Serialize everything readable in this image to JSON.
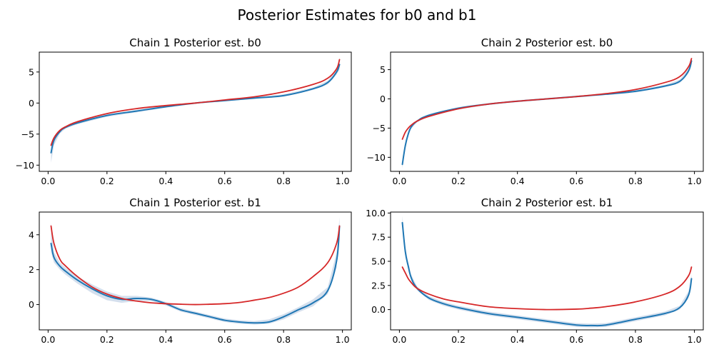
{
  "figure_title": "Posterior Estimates for b0 and b1",
  "colors": {
    "estimate": "#1f77b4",
    "band": "#b0c4de",
    "reference": "#d62728"
  },
  "chart_data": [
    {
      "type": "line",
      "title": "Chain 1 Posterior est. b0",
      "xlim": [
        -0.03,
        1.03
      ],
      "ylim": [
        -11.0,
        8.2
      ],
      "xticks": [
        0,
        0.2,
        0.4,
        0.6,
        0.8,
        1.0
      ],
      "xtick_labels": [
        "0.0",
        "0.2",
        "0.4",
        "0.6",
        "0.8",
        "1.0"
      ],
      "yticks": [
        -10,
        -5,
        0,
        5
      ],
      "ytick_labels": [
        "−10",
        "−5",
        "0",
        "5"
      ],
      "x": [
        0.01,
        0.02,
        0.04,
        0.06,
        0.1,
        0.2,
        0.3,
        0.4,
        0.5,
        0.6,
        0.7,
        0.8,
        0.9,
        0.95,
        0.98,
        0.99
      ],
      "series": [
        {
          "name": "estimate",
          "values": [
            -8.0,
            -6.0,
            -4.6,
            -3.9,
            -3.2,
            -2.0,
            -1.3,
            -0.6,
            0.0,
            0.4,
            0.8,
            1.2,
            2.3,
            3.3,
            5.0,
            6.2
          ]
        },
        {
          "name": "estimate_upper",
          "values": [
            -6.5,
            -5.4,
            -4.3,
            -3.7,
            -3.0,
            -1.8,
            -1.1,
            -0.45,
            0.1,
            0.5,
            0.95,
            1.4,
            2.5,
            3.6,
            5.5,
            7.2
          ]
        },
        {
          "name": "estimate_lower",
          "values": [
            -9.6,
            -6.8,
            -4.9,
            -4.1,
            -3.4,
            -2.2,
            -1.5,
            -0.75,
            -0.1,
            0.3,
            0.65,
            1.0,
            2.1,
            3.0,
            4.6,
            5.4
          ]
        },
        {
          "name": "reference",
          "values": [
            -6.8,
            -5.6,
            -4.4,
            -3.8,
            -3.0,
            -1.7,
            -0.9,
            -0.4,
            0.0,
            0.5,
            1.0,
            1.8,
            3.0,
            4.0,
            5.5,
            7.0
          ]
        }
      ]
    },
    {
      "type": "line",
      "title": "Chain 2 Posterior est. b0",
      "xlim": [
        -0.03,
        1.03
      ],
      "ylim": [
        -12.4,
        8.0
      ],
      "xticks": [
        0,
        0.2,
        0.4,
        0.6,
        0.8,
        1.0
      ],
      "xtick_labels": [
        "0.0",
        "0.2",
        "0.4",
        "0.6",
        "0.8",
        "1.0"
      ],
      "yticks": [
        -10,
        -5,
        0,
        5
      ],
      "ytick_labels": [
        "−10",
        "−5",
        "0",
        "5"
      ],
      "x": [
        0.01,
        0.02,
        0.03,
        0.04,
        0.06,
        0.1,
        0.2,
        0.3,
        0.4,
        0.5,
        0.6,
        0.7,
        0.8,
        0.9,
        0.95,
        0.98,
        0.99
      ],
      "series": [
        {
          "name": "estimate",
          "values": [
            -11.2,
            -8.0,
            -6.0,
            -4.8,
            -3.8,
            -2.8,
            -1.6,
            -0.9,
            -0.4,
            0.0,
            0.4,
            0.8,
            1.3,
            2.2,
            3.0,
            4.8,
            6.5
          ]
        },
        {
          "name": "estimate_upper",
          "values": [
            -10.4,
            -7.4,
            -5.6,
            -4.5,
            -3.6,
            -2.6,
            -1.4,
            -0.75,
            -0.25,
            0.15,
            0.55,
            0.95,
            1.5,
            2.4,
            3.3,
            5.2,
            7.0
          ]
        },
        {
          "name": "estimate_lower",
          "values": [
            -11.9,
            -8.6,
            -6.4,
            -5.1,
            -4.0,
            -3.0,
            -1.8,
            -1.05,
            -0.55,
            -0.15,
            0.25,
            0.65,
            1.1,
            2.0,
            2.7,
            4.4,
            6.0
          ]
        },
        {
          "name": "reference",
          "values": [
            -6.9,
            -5.7,
            -5.0,
            -4.5,
            -3.8,
            -3.0,
            -1.7,
            -0.9,
            -0.4,
            0.0,
            0.4,
            0.9,
            1.6,
            2.8,
            3.8,
            5.5,
            6.9
          ]
        }
      ]
    },
    {
      "type": "line",
      "title": "Chain 1 Posterior est. b1",
      "xlim": [
        -0.03,
        1.03
      ],
      "ylim": [
        -1.45,
        5.3
      ],
      "xticks": [
        0,
        0.2,
        0.4,
        0.6,
        0.8,
        1.0
      ],
      "xtick_labels": [
        "0.0",
        "0.2",
        "0.4",
        "0.6",
        "0.8",
        "1.0"
      ],
      "yticks": [
        0,
        2,
        4
      ],
      "ytick_labels": [
        "0",
        "2",
        "4"
      ],
      "x": [
        0.01,
        0.02,
        0.04,
        0.06,
        0.1,
        0.15,
        0.2,
        0.25,
        0.3,
        0.35,
        0.4,
        0.45,
        0.5,
        0.55,
        0.6,
        0.65,
        0.7,
        0.75,
        0.8,
        0.85,
        0.9,
        0.95,
        0.98,
        0.99
      ],
      "series": [
        {
          "name": "estimate",
          "values": [
            3.5,
            2.7,
            2.2,
            1.9,
            1.4,
            0.9,
            0.5,
            0.3,
            0.35,
            0.3,
            0.05,
            -0.3,
            -0.5,
            -0.7,
            -0.9,
            -1.0,
            -1.05,
            -1.0,
            -0.7,
            -0.3,
            0.1,
            0.8,
            2.5,
            4.5
          ]
        },
        {
          "name": "estimate_upper",
          "values": [
            4.7,
            3.0,
            2.4,
            2.1,
            1.6,
            1.15,
            0.75,
            0.5,
            0.5,
            0.4,
            0.15,
            -0.2,
            -0.4,
            -0.6,
            -0.8,
            -0.9,
            -0.95,
            -0.85,
            -0.55,
            -0.15,
            0.3,
            1.0,
            3.0,
            5.0
          ]
        },
        {
          "name": "estimate_lower",
          "values": [
            3.0,
            2.4,
            2.0,
            1.7,
            1.2,
            0.65,
            0.25,
            0.1,
            0.2,
            0.2,
            -0.05,
            -0.4,
            -0.6,
            -0.8,
            -1.0,
            -1.1,
            -1.15,
            -1.1,
            -0.85,
            -0.45,
            -0.1,
            0.6,
            2.1,
            4.2
          ]
        },
        {
          "name": "reference",
          "values": [
            4.5,
            3.5,
            2.6,
            2.2,
            1.6,
            1.0,
            0.6,
            0.35,
            0.2,
            0.1,
            0.05,
            0.02,
            0.0,
            0.02,
            0.05,
            0.12,
            0.25,
            0.4,
            0.65,
            1.0,
            1.6,
            2.4,
            3.5,
            4.5
          ]
        }
      ]
    },
    {
      "type": "line",
      "title": "Chain 2 Posterior est. b1",
      "xlim": [
        -0.03,
        1.03
      ],
      "ylim": [
        -2.1,
        10.1
      ],
      "xticks": [
        0,
        0.2,
        0.4,
        0.6,
        0.8,
        1.0
      ],
      "xtick_labels": [
        "0.0",
        "0.2",
        "0.4",
        "0.6",
        "0.8",
        "1.0"
      ],
      "yticks": [
        0,
        2.5,
        5,
        7.5,
        10
      ],
      "ytick_labels": [
        "0.0",
        "2.5",
        "5.0",
        "7.5",
        "10.0"
      ],
      "x": [
        0.01,
        0.02,
        0.03,
        0.04,
        0.06,
        0.1,
        0.15,
        0.2,
        0.3,
        0.4,
        0.5,
        0.6,
        0.65,
        0.7,
        0.8,
        0.9,
        0.95,
        0.98,
        0.99
      ],
      "series": [
        {
          "name": "estimate",
          "values": [
            9.0,
            6.0,
            4.5,
            3.3,
            2.2,
            1.2,
            0.6,
            0.2,
            -0.4,
            -0.8,
            -1.2,
            -1.6,
            -1.65,
            -1.6,
            -1.0,
            -0.4,
            0.2,
            1.5,
            3.2
          ]
        },
        {
          "name": "estimate_upper",
          "values": [
            9.7,
            6.5,
            4.9,
            3.6,
            2.4,
            1.4,
            0.8,
            0.4,
            -0.2,
            -0.6,
            -1.0,
            -1.4,
            -1.45,
            -1.4,
            -0.8,
            -0.2,
            0.4,
            1.9,
            3.6
          ]
        },
        {
          "name": "estimate_lower",
          "values": [
            8.5,
            5.6,
            4.1,
            3.0,
            2.0,
            1.0,
            0.4,
            0.0,
            -0.6,
            -1.0,
            -1.4,
            -1.8,
            -1.85,
            -1.8,
            -1.2,
            -0.6,
            0.0,
            1.2,
            2.8
          ]
        },
        {
          "name": "reference",
          "values": [
            4.4,
            3.8,
            3.2,
            2.8,
            2.2,
            1.6,
            1.1,
            0.8,
            0.3,
            0.1,
            0.0,
            0.05,
            0.15,
            0.3,
            0.8,
            1.6,
            2.4,
            3.5,
            4.4
          ]
        }
      ]
    }
  ]
}
